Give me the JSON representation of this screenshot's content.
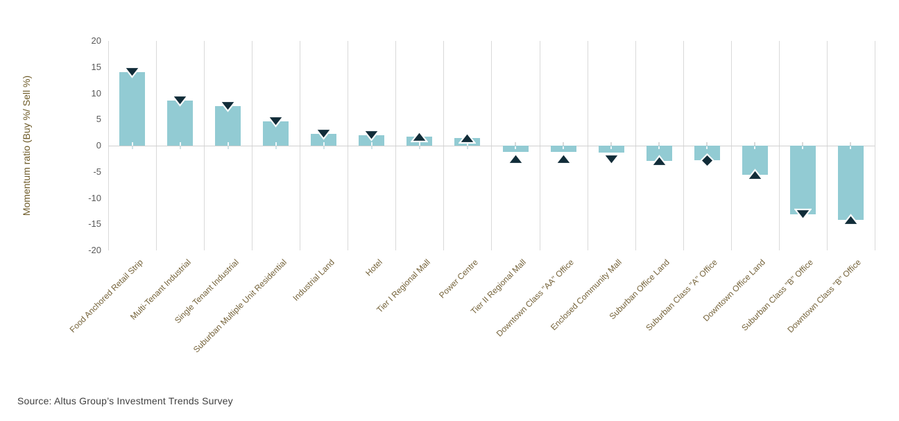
{
  "page": {
    "background": "#ffffff"
  },
  "source_note": "Source:  Altus Group’s Investment Trends Survey",
  "chart_data": {
    "type": "bar",
    "title": "",
    "xlabel": "",
    "ylabel": "Momentum ratio (Buy %/ Sell %)",
    "ylim": [
      -20,
      20
    ],
    "yticks": [
      20,
      15,
      10,
      5,
      0,
      -5,
      -10,
      -15,
      -20
    ],
    "grid": "vertical category separators + zero line",
    "legend_position": "none",
    "categories": [
      "Food Anchored Retail Strip",
      "Multi-Tenant Industrial",
      "Single Tenant Industrial",
      "Suburban Multiple Unit Residential",
      "Industrial Land",
      "Hotel",
      "Tier I Regional Mall",
      "Power Centre",
      "Tier II Regional Mall",
      "Downtown Class \"AA\" Office",
      "Enclosed Community Mall",
      "Suburban Office Land",
      "Suburban Class \"A\" Office",
      "Downtown Office Land",
      "Suburban Class \"B\" Office",
      "Downtown Class \"B\" Office"
    ],
    "series": [
      {
        "name": "Momentum ratio",
        "values": [
          14.0,
          8.6,
          7.6,
          4.7,
          2.3,
          2.0,
          1.7,
          1.4,
          -1.2,
          -1.2,
          -1.3,
          -2.9,
          -2.8,
          -5.5,
          -13.1,
          -14.2
        ]
      }
    ],
    "marker_direction": [
      "down",
      "down",
      "down",
      "down",
      "down",
      "down",
      "up",
      "up",
      "up",
      "up",
      "down",
      "up",
      "same",
      "up",
      "down",
      "up"
    ],
    "colors": {
      "bar": "#92CBD3",
      "marker": "#112C38",
      "marker_outline": "#ffffff",
      "gridline": "#D9D9D9",
      "zero_line": "#D0D0D0",
      "ytick_text": "#595959",
      "category_text": "#75633A",
      "ylabel_text": "#6E5B28",
      "source_text": "#3F3F3F"
    }
  }
}
